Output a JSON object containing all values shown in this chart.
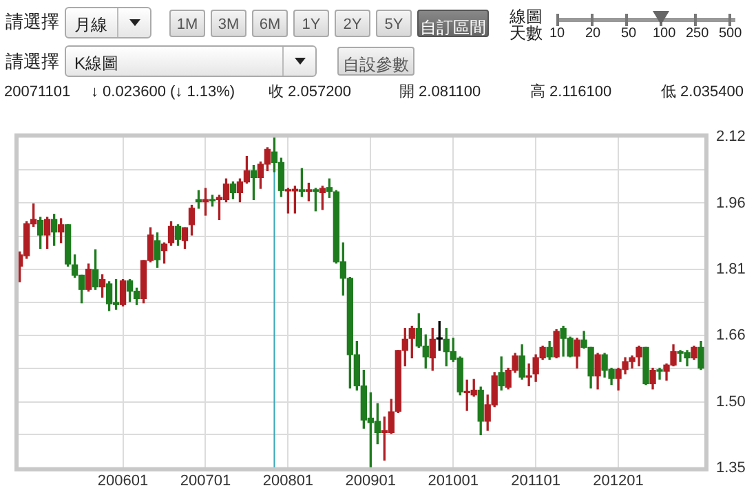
{
  "chart_data": {
    "type": "candlestick",
    "annotations": [
      "請選擇",
      "月線",
      "1M",
      "3M",
      "6M",
      "1Y",
      "2Y",
      "5Y",
      "自訂區間",
      "線圖天數",
      "10",
      "20",
      "50",
      "100",
      "250",
      "500",
      "請選擇",
      "K線圖",
      "自設參數",
      "20071101",
      "↓ 0.023600 (↓ 1.13%)",
      "收 2.057200",
      "開 2.081100",
      "高 2.116100",
      "低 2.035400"
    ],
    "x": [
      "2004-10",
      "2004-11",
      "2004-12",
      "2005-01",
      "2005-02",
      "2005-03",
      "2005-04",
      "2005-05",
      "2005-06",
      "2005-07",
      "2005-08",
      "2005-09",
      "2005-10",
      "2005-11",
      "2005-12",
      "2006-01",
      "2006-02",
      "2006-03",
      "2006-04",
      "2006-05",
      "2006-06",
      "2006-07",
      "2006-08",
      "2006-09",
      "2006-10",
      "2006-11",
      "2006-12",
      "2007-01",
      "2007-02",
      "2007-03",
      "2007-04",
      "2007-05",
      "2007-06",
      "2007-07",
      "2007-08",
      "2007-09",
      "2007-10",
      "2007-11",
      "2007-12",
      "2008-01",
      "2008-02",
      "2008-03",
      "2008-04",
      "2008-05",
      "2008-06",
      "2008-07",
      "2008-08",
      "2008-09",
      "2008-10",
      "2008-11",
      "2008-12",
      "2009-01",
      "2009-02",
      "2009-03",
      "2009-04",
      "2009-05",
      "2009-06",
      "2009-07",
      "2009-08",
      "2009-09",
      "2009-10",
      "2009-11",
      "2009-12",
      "2010-01",
      "2010-02",
      "2010-03",
      "2010-04",
      "2010-05",
      "2010-06",
      "2010-07",
      "2010-08",
      "2010-09",
      "2010-10",
      "2010-11",
      "2010-12",
      "2011-01",
      "2011-02",
      "2011-03",
      "2011-04",
      "2011-05",
      "2011-06",
      "2011-07",
      "2011-08",
      "2011-09",
      "2011-10",
      "2011-11",
      "2011-12",
      "2012-01",
      "2012-02",
      "2012-03",
      "2012-04",
      "2012-05",
      "2012-06",
      "2012-07",
      "2012-08",
      "2012-09",
      "2012-10",
      "2012-11",
      "2012-12",
      "2013-01"
    ],
    "ohlc": [
      [
        1.817,
        1.85,
        1.781,
        1.843
      ],
      [
        1.841,
        1.92,
        1.835,
        1.915
      ],
      [
        1.915,
        1.961,
        1.909,
        1.925
      ],
      [
        1.923,
        1.93,
        1.858,
        1.889
      ],
      [
        1.889,
        1.93,
        1.858,
        1.925
      ],
      [
        1.925,
        1.937,
        1.865,
        1.896
      ],
      [
        1.896,
        1.927,
        1.871,
        1.913
      ],
      [
        1.913,
        1.913,
        1.817,
        1.822
      ],
      [
        1.82,
        1.843,
        1.791,
        1.796
      ],
      [
        1.796,
        1.796,
        1.732,
        1.763
      ],
      [
        1.763,
        1.822,
        1.759,
        1.81
      ],
      [
        1.809,
        1.855,
        1.763,
        1.769
      ],
      [
        1.769,
        1.797,
        1.745,
        1.786
      ],
      [
        1.776,
        1.781,
        1.714,
        1.73
      ],
      [
        1.733,
        1.786,
        1.717,
        1.728
      ],
      [
        1.728,
        1.786,
        1.725,
        1.783
      ],
      [
        1.783,
        1.786,
        1.735,
        1.759
      ],
      [
        1.759,
        1.766,
        1.728,
        1.742
      ],
      [
        1.742,
        1.83,
        1.732,
        1.83
      ],
      [
        1.83,
        1.906,
        1.827,
        1.889
      ],
      [
        1.876,
        1.894,
        1.814,
        1.832
      ],
      [
        1.853,
        1.871,
        1.824,
        1.868
      ],
      [
        1.871,
        1.92,
        1.865,
        1.909
      ],
      [
        1.909,
        1.913,
        1.865,
        1.879
      ],
      [
        1.876,
        1.906,
        1.858,
        1.906
      ],
      [
        1.913,
        1.958,
        1.889,
        1.951
      ],
      [
        1.971,
        1.992,
        1.951,
        1.966
      ],
      [
        1.966,
        1.997,
        1.935,
        1.971
      ],
      [
        1.971,
        1.981,
        1.956,
        1.968
      ],
      [
        1.971,
        1.981,
        1.925,
        1.976
      ],
      [
        1.971,
        2.019,
        1.966,
        2.007
      ],
      [
        2.007,
        2.012,
        1.973,
        1.987
      ],
      [
        1.987,
        2.019,
        1.966,
        2.012
      ],
      [
        2.012,
        2.071,
        2.009,
        2.038
      ],
      [
        2.038,
        2.05,
        1.971,
        2.022
      ],
      [
        2.022,
        2.058,
        1.997,
        2.053
      ],
      [
        2.053,
        2.091,
        2.038,
        2.087
      ],
      [
        2.0811,
        2.1161,
        2.0354,
        2.0572
      ],
      [
        2.057,
        2.067,
        1.978,
        1.992
      ],
      [
        1.991,
        1.997,
        1.94,
        1.994
      ],
      [
        1.991,
        2.002,
        1.94,
        1.995
      ],
      [
        1.994,
        2.043,
        1.978,
        1.99
      ],
      [
        1.99,
        2.009,
        1.968,
        1.994
      ],
      [
        1.994,
        1.997,
        1.945,
        1.99
      ],
      [
        1.987,
        2.002,
        1.948,
        1.997
      ],
      [
        1.999,
        2.019,
        1.976,
        1.99
      ],
      [
        1.989,
        1.992,
        1.824,
        1.827
      ],
      [
        1.827,
        1.871,
        1.75,
        1.789
      ],
      [
        1.789,
        1.791,
        1.535,
        1.612
      ],
      [
        1.612,
        1.643,
        1.53,
        1.54
      ],
      [
        1.54,
        1.576,
        1.442,
        1.461
      ],
      [
        1.465,
        1.524,
        1.352,
        1.455
      ],
      [
        1.458,
        1.499,
        1.406,
        1.432
      ],
      [
        1.432,
        1.468,
        1.368,
        1.436
      ],
      [
        1.432,
        1.509,
        1.43,
        1.48
      ],
      [
        1.481,
        1.622,
        1.478,
        1.622
      ],
      [
        1.622,
        1.673,
        1.586,
        1.648
      ],
      [
        1.65,
        1.678,
        1.605,
        1.673
      ],
      [
        1.673,
        1.707,
        1.629,
        1.632
      ],
      [
        1.632,
        1.658,
        1.581,
        1.607
      ],
      [
        1.605,
        1.673,
        1.576,
        1.648
      ],
      [
        1.648,
        1.689,
        1.622,
        1.648
      ],
      [
        1.648,
        1.673,
        1.586,
        1.619
      ],
      [
        1.619,
        1.65,
        1.596,
        1.601
      ],
      [
        1.604,
        1.607,
        1.519,
        1.526
      ],
      [
        1.524,
        1.553,
        1.483,
        1.527
      ],
      [
        1.519,
        1.555,
        1.516,
        1.53
      ],
      [
        1.53,
        1.537,
        1.427,
        1.458
      ],
      [
        1.458,
        1.519,
        1.437,
        1.496
      ],
      [
        1.496,
        1.571,
        1.492,
        1.563
      ],
      [
        1.571,
        1.607,
        1.53,
        1.54
      ],
      [
        1.537,
        1.581,
        1.533,
        1.576
      ],
      [
        1.576,
        1.615,
        1.571,
        1.609
      ],
      [
        1.609,
        1.635,
        1.555,
        1.56
      ],
      [
        1.56,
        1.591,
        1.54,
        1.563
      ],
      [
        1.568,
        1.612,
        1.55,
        1.605
      ],
      [
        1.605,
        1.632,
        1.601,
        1.629
      ],
      [
        1.629,
        1.643,
        1.601,
        1.607
      ],
      [
        1.607,
        1.67,
        1.605,
        1.666
      ],
      [
        1.673,
        1.678,
        1.609,
        1.65
      ],
      [
        1.65,
        1.653,
        1.607,
        1.609
      ],
      [
        1.609,
        1.65,
        1.581,
        1.646
      ],
      [
        1.646,
        1.666,
        1.627,
        1.629
      ],
      [
        1.629,
        1.629,
        1.535,
        1.563
      ],
      [
        1.563,
        1.615,
        1.533,
        1.612
      ],
      [
        1.612,
        1.615,
        1.56,
        1.576
      ],
      [
        1.578,
        1.581,
        1.543,
        1.557
      ],
      [
        1.557,
        1.581,
        1.53,
        1.578
      ],
      [
        1.578,
        1.605,
        1.568,
        1.596
      ],
      [
        1.596,
        1.609,
        1.581,
        1.605
      ],
      [
        1.607,
        1.632,
        1.586,
        1.629
      ],
      [
        1.629,
        1.629,
        1.543,
        1.545
      ],
      [
        1.545,
        1.581,
        1.533,
        1.576
      ],
      [
        1.576,
        1.581,
        1.555,
        1.574
      ],
      [
        1.574,
        1.591,
        1.553,
        1.588
      ],
      [
        1.588,
        1.635,
        1.586,
        1.619
      ],
      [
        1.619,
        1.622,
        1.596,
        1.615
      ],
      [
        1.617,
        1.622,
        1.586,
        1.605
      ],
      [
        1.605,
        1.632,
        1.601,
        1.629
      ],
      [
        1.629,
        1.643,
        1.578,
        1.581
      ]
    ],
    "colors": [
      "#b01e23",
      "#b01e23",
      "#b01e23",
      "#1e7b1e",
      "#b01e23",
      "#1e7b1e",
      "#b01e23",
      "#1e7b1e",
      "#1e7b1e",
      "#1e7b1e",
      "#b01e23",
      "#1e7b1e",
      "#b01e23",
      "#1e7b1e",
      "#1e7b1e",
      "#b01e23",
      "#1e7b1e",
      "#1e7b1e",
      "#b01e23",
      "#b01e23",
      "#1e7b1e",
      "#b01e23",
      "#b01e23",
      "#1e7b1e",
      "#b01e23",
      "#b01e23",
      "#1e7b1e",
      "#b01e23",
      "#1e7b1e",
      "#b01e23",
      "#b01e23",
      "#1e7b1e",
      "#b01e23",
      "#b01e23",
      "#1e7b1e",
      "#b01e23",
      "#b01e23",
      "#1e7b1e",
      "#1e7b1e",
      "#b01e23",
      "#b01e23",
      "#1e7b1e",
      "#b01e23",
      "#1e7b1e",
      "#b01e23",
      "#1e7b1e",
      "#1e7b1e",
      "#1e7b1e",
      "#1e7b1e",
      "#1e7b1e",
      "#1e7b1e",
      "#1e7b1e",
      "#1e7b1e",
      "#b01e23",
      "#b01e23",
      "#b01e23",
      "#b01e23",
      "#b01e23",
      "#1e7b1e",
      "#1e7b1e",
      "#b01e23",
      "#000000",
      "#1e7b1e",
      "#1e7b1e",
      "#1e7b1e",
      "#b01e23",
      "#b01e23",
      "#1e7b1e",
      "#b01e23",
      "#b01e23",
      "#1e7b1e",
      "#b01e23",
      "#b01e23",
      "#1e7b1e",
      "#b01e23",
      "#b01e23",
      "#b01e23",
      "#1e7b1e",
      "#b01e23",
      "#1e7b1e",
      "#1e7b1e",
      "#b01e23",
      "#1e7b1e",
      "#1e7b1e",
      "#b01e23",
      "#1e7b1e",
      "#1e7b1e",
      "#b01e23",
      "#b01e23",
      "#b01e23",
      "#b01e23",
      "#1e7b1e",
      "#b01e23",
      "#1e7b1e",
      "#b01e23",
      "#b01e23",
      "#1e7b1e",
      "#1e7b1e",
      "#b01e23",
      "#1e7b1e"
    ],
    "xlim": [
      "2004-09-23",
      "2013-01-19"
    ],
    "xticks": [
      {
        "value": "2006-01",
        "label": "200601"
      },
      {
        "value": "2007-01",
        "label": "200701"
      },
      {
        "value": "2008-01",
        "label": "200801"
      },
      {
        "value": "2009-01",
        "label": "200901"
      },
      {
        "value": "2010-01",
        "label": "201001"
      },
      {
        "value": "2011-01",
        "label": "201101"
      },
      {
        "value": "2012-01",
        "label": "201201"
      }
    ],
    "ylim": [
      1.35,
      2.1161
    ],
    "yticks": [
      1.35,
      {
        "value": 1.427,
        "label": null
      },
      {
        "value": 1.503,
        "label": "1.50"
      },
      {
        "value": 1.58,
        "label": null
      },
      {
        "value": 1.656,
        "label": "1.66"
      },
      {
        "value": 1.733,
        "label": null
      },
      {
        "value": 1.81,
        "label": "1.81"
      },
      {
        "value": 1.886,
        "label": null
      },
      {
        "value": 1.963,
        "label": "1.96"
      },
      {
        "value": 2.04,
        "label": null
      },
      {
        "value": 2.1161,
        "label": "2.12"
      }
    ],
    "ref_lines": [
      {
        "axis": "x",
        "value": "2007-11",
        "color": "#3aa6b9"
      }
    ],
    "grid": true,
    "legend": false
  }
}
